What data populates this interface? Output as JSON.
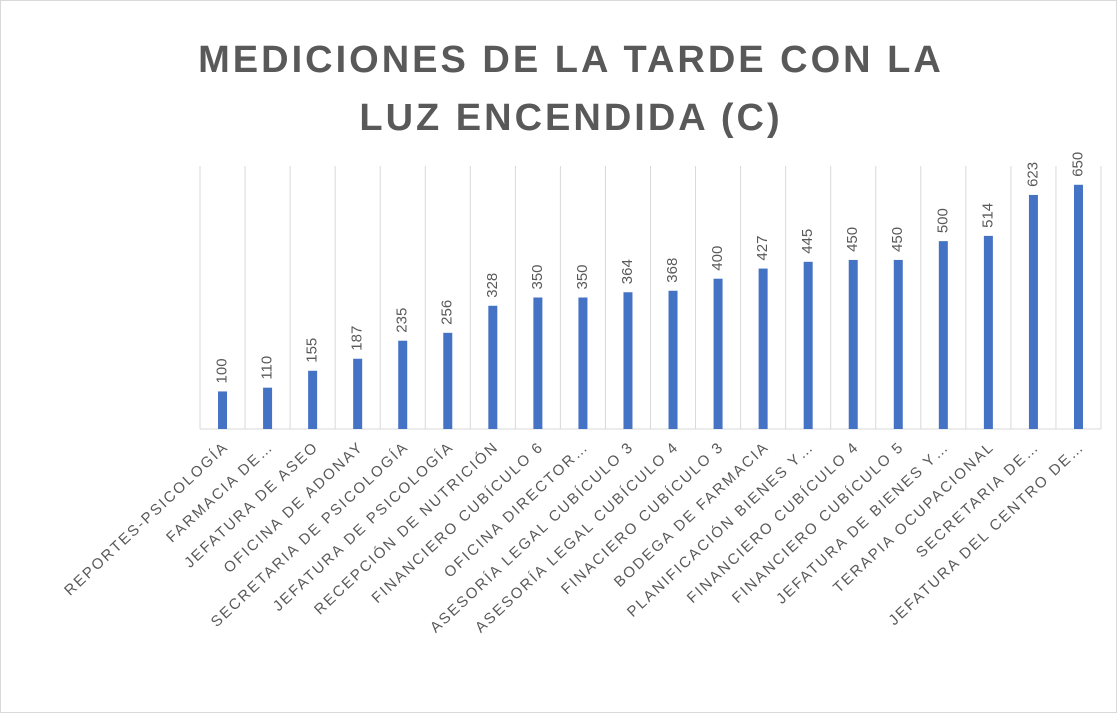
{
  "chart_data": {
    "type": "bar",
    "title": "MEDICIONES DE LA TARDE CON LA LUZ ENCENDIDA (C)",
    "categories": [
      "REPORTES-PSICOLOGÍA",
      "FARMACIA DE…",
      "JEFATURA DE ASEO",
      "OFICINA DE ADONAY",
      "SECRETARIA DE PSICOLOGÍA",
      "JEFATURA DE PSICOLOGÍA",
      "RECEPCIÓN DE NUTRICIÓN",
      "FINANCIERO CUBÍCULO 6",
      "OFICINA DIRECTOR…",
      "ASESORÍA LEGAL CUBÍCULO 3",
      "ASESORÍA LEGAL CUBÍCULO 4",
      "FINACIERO CUBÍCULO 3",
      "BODEGA DE FARMACIA",
      "PLANIFICACIÓN BIENES Y…",
      "FINANCIERO CUBÍCULO 4",
      "FINANCIERO CUBÍCULO 5",
      "JEFATURA DE BIENES Y…",
      "TERAPIA OCUPACIONAL",
      "SECRETARIA DE…",
      "JEFATURA DEL CENTRO DE…"
    ],
    "values": [
      100,
      110,
      155,
      187,
      235,
      256,
      328,
      350,
      350,
      364,
      368,
      400,
      427,
      445,
      450,
      450,
      500,
      514,
      623,
      650
    ],
    "color": "#4472c4",
    "ylim": [
      0,
      700
    ],
    "grid": true
  }
}
